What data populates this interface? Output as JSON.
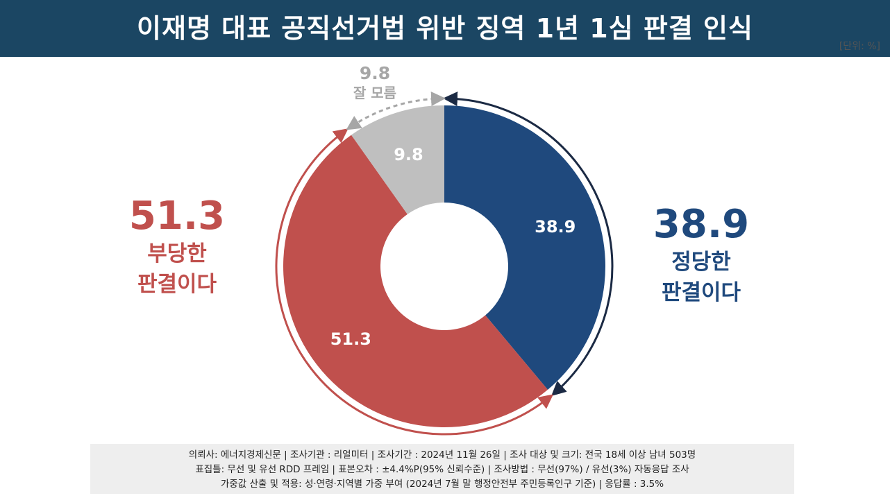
{
  "header": {
    "title": "이재명 대표 공직선거법 위반 징역 1년 1심 판결 인식",
    "unit": "[단위: %]"
  },
  "chart_data": {
    "type": "pie",
    "donut": true,
    "slices": [
      {
        "label": "정당한 판결이다",
        "value": 38.9,
        "color": "#1f497d"
      },
      {
        "label": "부당한 판결이다",
        "value": 51.3,
        "color": "#c0504d"
      },
      {
        "label": "잘 모름",
        "value": 9.8,
        "color": "#bfbfbf"
      }
    ],
    "slice_labels": [
      "38.9",
      "51.3",
      "9.8"
    ]
  },
  "callouts": {
    "left": {
      "value": "51.3",
      "line1": "부당한",
      "line2": "판결이다"
    },
    "right": {
      "value": "38.9",
      "line1": "정당한",
      "line2": "판결이다"
    },
    "top": {
      "value": "9.8",
      "label": "잘 모름"
    }
  },
  "footer": {
    "line1": "의뢰사:  에너지경제신문  | 조사기관 : 리얼미터  |  조사기간 : 2024년 11월 26일 | 조사 대상 및 크기: 전국 18세 이상 남녀 503명",
    "line2": "표집틀:  무선 및 유선 RDD 프레임 | 표본오차 : ±4.4%P(95%  신뢰수준) | 조사방법 : 무선(97%)  / 유선(3%)  자동응답 조사",
    "line3": "가중값 산출 및 적용: 성·연령·지역별  가중 부여 (2024년 7월 말 행정안전부  주민등록인구  기준) | 응답률 : 3.5%"
  }
}
